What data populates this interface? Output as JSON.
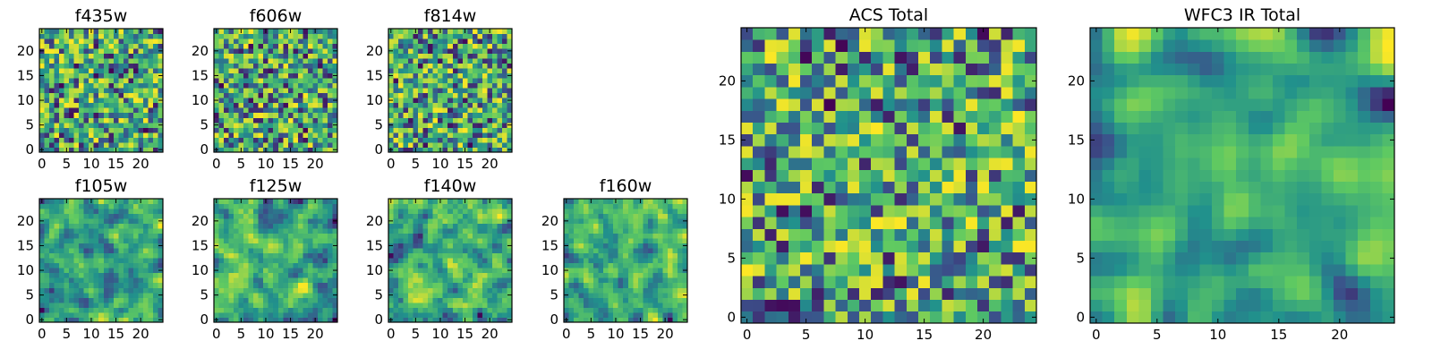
{
  "colormap": [
    "#440154",
    "#3b528b",
    "#21918c",
    "#5ec962",
    "#fde725"
  ],
  "chart_data": [
    {
      "type": "heatmap",
      "title": "f435w",
      "grid": [
        25,
        25
      ],
      "xlim": [
        0,
        25
      ],
      "ylim": [
        0,
        25
      ],
      "xticks": [
        0,
        5,
        10,
        15,
        20
      ],
      "yticks": [
        0,
        5,
        10,
        15,
        20
      ],
      "seed": 11,
      "smooth": 0,
      "values": []
    },
    {
      "type": "heatmap",
      "title": "f606w",
      "grid": [
        25,
        25
      ],
      "xlim": [
        0,
        25
      ],
      "ylim": [
        0,
        25
      ],
      "xticks": [
        0,
        5,
        10,
        15,
        20
      ],
      "yticks": [
        0,
        5,
        10,
        15,
        20
      ],
      "seed": 23,
      "smooth": 0,
      "values": []
    },
    {
      "type": "heatmap",
      "title": "f814w",
      "grid": [
        25,
        25
      ],
      "xlim": [
        0,
        25
      ],
      "ylim": [
        0,
        25
      ],
      "xticks": [
        0,
        5,
        10,
        15,
        20
      ],
      "yticks": [
        0,
        5,
        10,
        15,
        20
      ],
      "seed": 37,
      "smooth": 0,
      "values": []
    },
    {
      "type": "heatmap",
      "title": "f105w",
      "grid": [
        25,
        25
      ],
      "xlim": [
        0,
        25
      ],
      "ylim": [
        0,
        25
      ],
      "xticks": [
        0,
        5,
        10,
        15,
        20
      ],
      "yticks": [
        0,
        5,
        10,
        15,
        20
      ],
      "seed": 41,
      "smooth": 1,
      "values": []
    },
    {
      "type": "heatmap",
      "title": "f125w",
      "grid": [
        25,
        25
      ],
      "xlim": [
        0,
        25
      ],
      "ylim": [
        0,
        25
      ],
      "xticks": [
        0,
        5,
        10,
        15,
        20
      ],
      "yticks": [
        0,
        5,
        10,
        15,
        20
      ],
      "seed": 53,
      "smooth": 1,
      "values": []
    },
    {
      "type": "heatmap",
      "title": "f140w",
      "grid": [
        25,
        25
      ],
      "xlim": [
        0,
        25
      ],
      "ylim": [
        0,
        25
      ],
      "xticks": [
        0,
        5,
        10,
        15,
        20
      ],
      "yticks": [
        0,
        5,
        10,
        15,
        20
      ],
      "seed": 67,
      "smooth": 1,
      "values": []
    },
    {
      "type": "heatmap",
      "title": "f160w",
      "grid": [
        25,
        25
      ],
      "xlim": [
        0,
        25
      ],
      "ylim": [
        0,
        25
      ],
      "xticks": [
        0,
        5,
        10,
        15,
        20
      ],
      "yticks": [
        0,
        5,
        10,
        15,
        20
      ],
      "seed": 79,
      "smooth": 1,
      "values": []
    },
    {
      "type": "heatmap",
      "title": "ACS Total",
      "grid": [
        25,
        25
      ],
      "xlim": [
        0,
        25
      ],
      "ylim": [
        0,
        25
      ],
      "xticks": [
        0,
        5,
        10,
        15,
        20
      ],
      "yticks": [
        0,
        5,
        10,
        15,
        20
      ],
      "seed": 97,
      "smooth": 0,
      "values": []
    },
    {
      "type": "heatmap",
      "title": "WFC3 IR Total",
      "grid": [
        25,
        25
      ],
      "xlim": [
        0,
        25
      ],
      "ylim": [
        0,
        25
      ],
      "xticks": [
        0,
        5,
        10,
        15,
        20
      ],
      "yticks": [
        0,
        5,
        10,
        15,
        20
      ],
      "seed": 113,
      "smooth": 2,
      "values": []
    }
  ]
}
